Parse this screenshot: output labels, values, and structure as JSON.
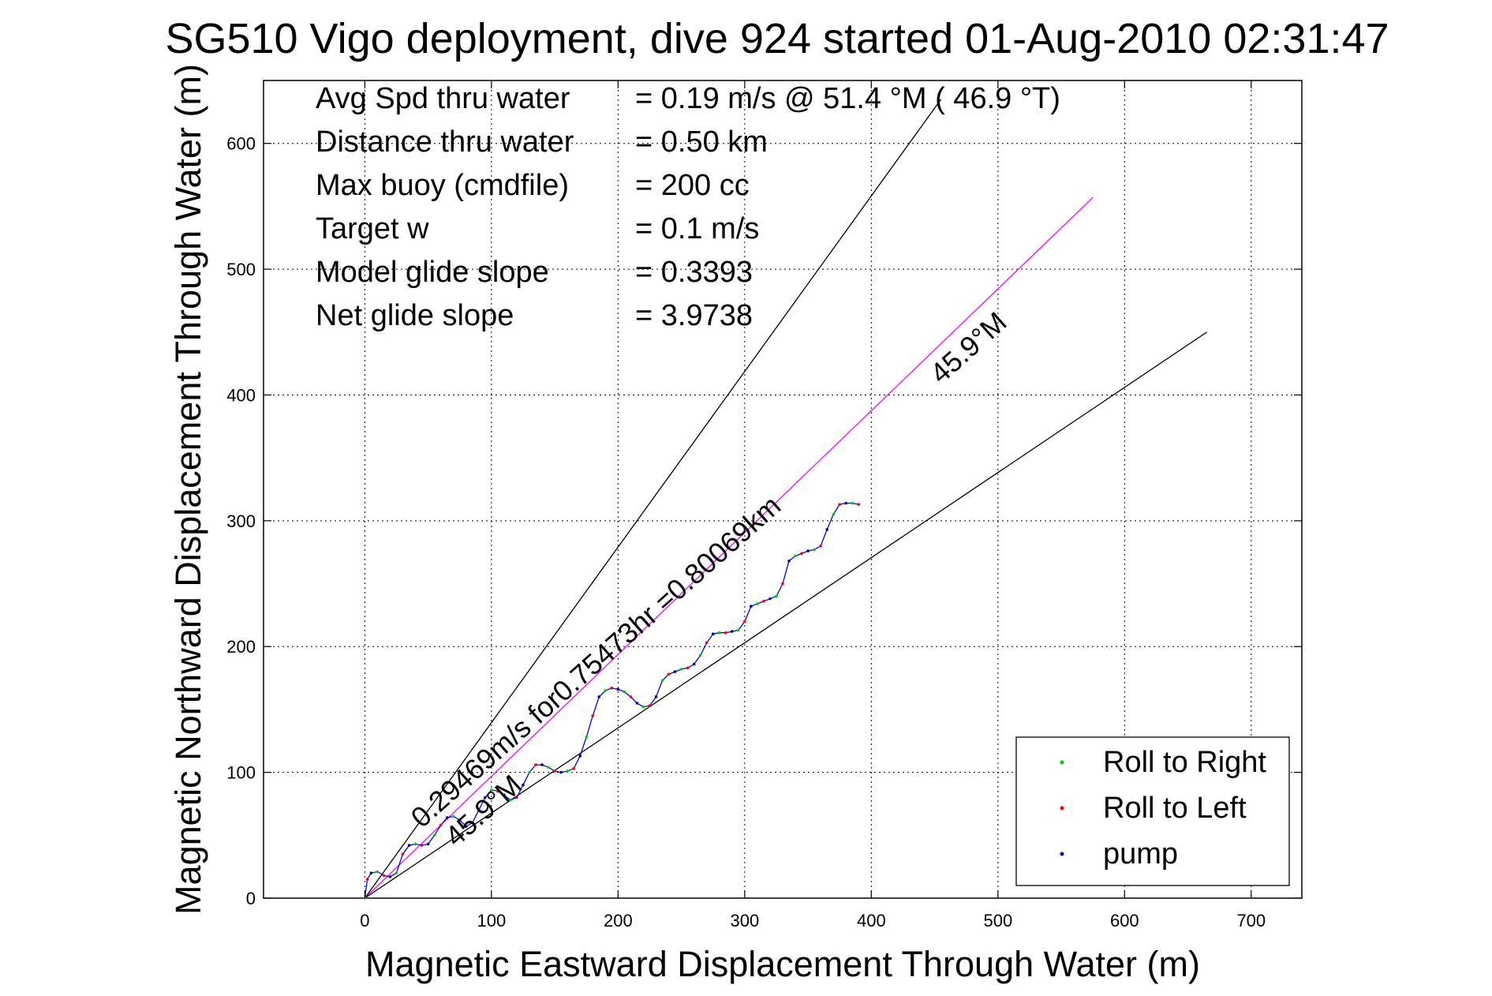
{
  "chart_data": {
    "type": "line",
    "title": "SG510 Vigo deployment, dive 924 started 01-Aug-2010 02:31:47",
    "xlabel": "Magnetic Eastward Displacement Through Water (m)",
    "ylabel": "Magnetic Northward Displacement Through Water (m)",
    "xlim": [
      -80,
      740
    ],
    "ylim": [
      0,
      650
    ],
    "xticks": [
      0,
      100,
      200,
      300,
      400,
      500,
      600,
      700
    ],
    "yticks": [
      0,
      100,
      200,
      300,
      400,
      500,
      600
    ],
    "grid": true,
    "info_lines": [
      {
        "label": "Avg Spd thru water",
        "value": "=  0.19 m/s @  51.4 °M ( 46.9 °T)"
      },
      {
        "label": "Distance thru water",
        "value": "=  0.50 km"
      },
      {
        "label": "Max buoy (cmdfile)",
        "value": "= 200 cc"
      },
      {
        "label": "Target w",
        "value": "= 0.1 m/s"
      },
      {
        "label": "Model glide slope",
        "value": "= 0.3393"
      },
      {
        "label": "Net glide slope",
        "value": "= 3.9738"
      }
    ],
    "reference_lines": [
      {
        "x": [
          0,
          455
        ],
        "y": [
          0,
          635
        ],
        "color": "#000000"
      },
      {
        "x": [
          0,
          575
        ],
        "y": [
          0,
          557
        ],
        "color": "#ff00ff"
      },
      {
        "x": [
          0,
          665
        ],
        "y": [
          0,
          450
        ],
        "color": "#000000"
      }
    ],
    "annotations": [
      {
        "text": "0.29469m/s for0.75473hr =0.80069km",
        "x": 45,
        "y": 55,
        "angle": 41.6
      },
      {
        "text": "45.9°M",
        "x": 72,
        "y": 40,
        "angle": 41.6
      },
      {
        "text": "45.9°M",
        "x": 455,
        "y": 408,
        "angle": 41.6
      }
    ],
    "track": {
      "x": [
        0,
        2,
        5,
        10,
        15,
        20,
        25,
        30,
        35,
        40,
        45,
        50,
        55,
        60,
        65,
        70,
        75,
        80,
        85,
        90,
        95,
        100,
        105,
        110,
        115,
        120,
        125,
        130,
        135,
        140,
        145,
        150,
        155,
        160,
        165,
        170,
        175,
        180,
        185,
        190,
        195,
        200,
        205,
        210,
        215,
        220,
        225,
        230,
        235,
        240,
        245,
        250,
        255,
        260,
        265,
        270,
        275,
        280,
        285,
        290,
        295,
        300,
        305,
        310,
        315,
        320,
        325,
        330,
        335,
        340,
        345,
        350,
        355,
        360,
        365,
        370,
        375,
        380,
        385,
        390
      ],
      "y": [
        0,
        15,
        20,
        21,
        18,
        17,
        20,
        35,
        42,
        43,
        42,
        43,
        50,
        58,
        64,
        65,
        62,
        57,
        60,
        70,
        80,
        86,
        85,
        82,
        78,
        80,
        90,
        100,
        106,
        106,
        104,
        101,
        100,
        101,
        103,
        113,
        128,
        145,
        160,
        165,
        167,
        166,
        164,
        160,
        155,
        152,
        153,
        160,
        173,
        178,
        180,
        182,
        183,
        186,
        193,
        203,
        210,
        211,
        211,
        212,
        213,
        220,
        232,
        234,
        236,
        238,
        240,
        250,
        268,
        272,
        274,
        276,
        277,
        280,
        293,
        305,
        313,
        314,
        314,
        313
      ]
    },
    "legend": {
      "placement": "bottom-right",
      "entries": [
        {
          "name": "Roll to Right",
          "color": "#00cc00"
        },
        {
          "name": "Roll to Left",
          "color": "#ff0000"
        },
        {
          "name": "pump",
          "color": "#000080"
        }
      ]
    },
    "colors": {
      "track": "#0000ff",
      "grid": "#000000"
    }
  }
}
